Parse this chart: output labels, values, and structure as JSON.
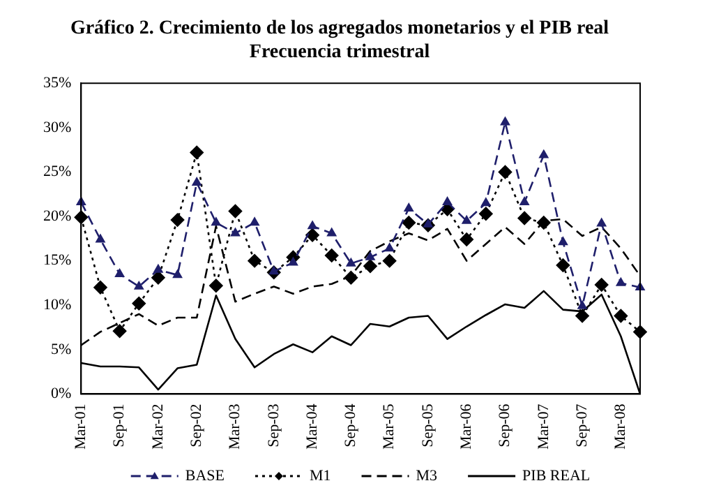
{
  "chart_data": {
    "type": "line",
    "title": "Gráfico 2. Crecimiento de los agregados monetarios y el PIB real",
    "subtitle": "Frecuencia trimestral",
    "categories": [
      "Mar-01",
      null,
      "Sep-01",
      null,
      "Mar-02",
      null,
      "Sep-02",
      null,
      "Mar-03",
      null,
      "Sep-03",
      null,
      "Mar-04",
      null,
      "Sep-04",
      null,
      "Mar-05",
      null,
      "Sep-05",
      null,
      "Mar-06",
      null,
      "Sep-06",
      null,
      "Mar-07",
      null,
      "Sep-07",
      null,
      "Mar-08",
      null
    ],
    "series": [
      {
        "name": "BASE",
        "color": "#1f1f6b",
        "marker": "triangle",
        "line_style": "dashed",
        "values": [
          21.6,
          17.4,
          13.5,
          12.1,
          14.0,
          13.4,
          23.8,
          19.3,
          18.1,
          19.3,
          13.8,
          14.8,
          18.9,
          18.1,
          14.7,
          15.4,
          16.4,
          20.9,
          19.1,
          21.6,
          19.5,
          21.5,
          30.6,
          21.6,
          26.9,
          17.1,
          9.9,
          19.2,
          12.5,
          12.0
        ]
      },
      {
        "name": "M1",
        "color": "#000000",
        "marker": "diamond",
        "line_style": "dotted",
        "values": [
          19.9,
          12.0,
          7.1,
          10.2,
          13.1,
          19.6,
          27.2,
          12.2,
          20.6,
          15.0,
          13.7,
          15.4,
          17.9,
          15.6,
          13.1,
          14.4,
          15.0,
          19.3,
          19.0,
          20.8,
          17.4,
          20.3,
          25.0,
          19.8,
          19.3,
          14.5,
          8.8,
          12.3,
          8.8,
          7.0
        ]
      },
      {
        "name": "M3",
        "color": "#000000",
        "marker": "none",
        "line_style": "dashed",
        "values": [
          5.5,
          7.0,
          8.0,
          9.0,
          7.7,
          8.6,
          8.6,
          18.9,
          10.4,
          11.3,
          12.1,
          11.3,
          12.1,
          12.4,
          13.3,
          16.1,
          17.2,
          18.1,
          17.3,
          18.6,
          15.0,
          16.9,
          18.8,
          16.9,
          19.5,
          19.7,
          17.8,
          18.8,
          16.4,
          13.3
        ]
      },
      {
        "name": "PIB REAL",
        "color": "#000000",
        "marker": "none",
        "line_style": "solid",
        "values": [
          3.5,
          3.1,
          3.1,
          3.0,
          0.5,
          2.9,
          3.3,
          11.1,
          6.2,
          3.0,
          4.5,
          5.6,
          4.7,
          6.5,
          5.5,
          7.9,
          7.6,
          8.6,
          8.8,
          6.2,
          7.6,
          8.9,
          10.1,
          9.7,
          11.6,
          9.5,
          9.3,
          11.2,
          6.5,
          0
        ]
      }
    ],
    "ylim": [
      0,
      35
    ],
    "yticks": [
      {
        "value": 0,
        "label": "0%"
      },
      {
        "value": 5,
        "label": "5%"
      },
      {
        "value": 10,
        "label": "10%"
      },
      {
        "value": 15,
        "label": "15%"
      },
      {
        "value": 20,
        "label": "20%"
      },
      {
        "value": 25,
        "label": "25%"
      },
      {
        "value": 30,
        "label": "30%"
      },
      {
        "value": 35,
        "label": "35%"
      }
    ],
    "grid": false,
    "legend": "bottom"
  }
}
